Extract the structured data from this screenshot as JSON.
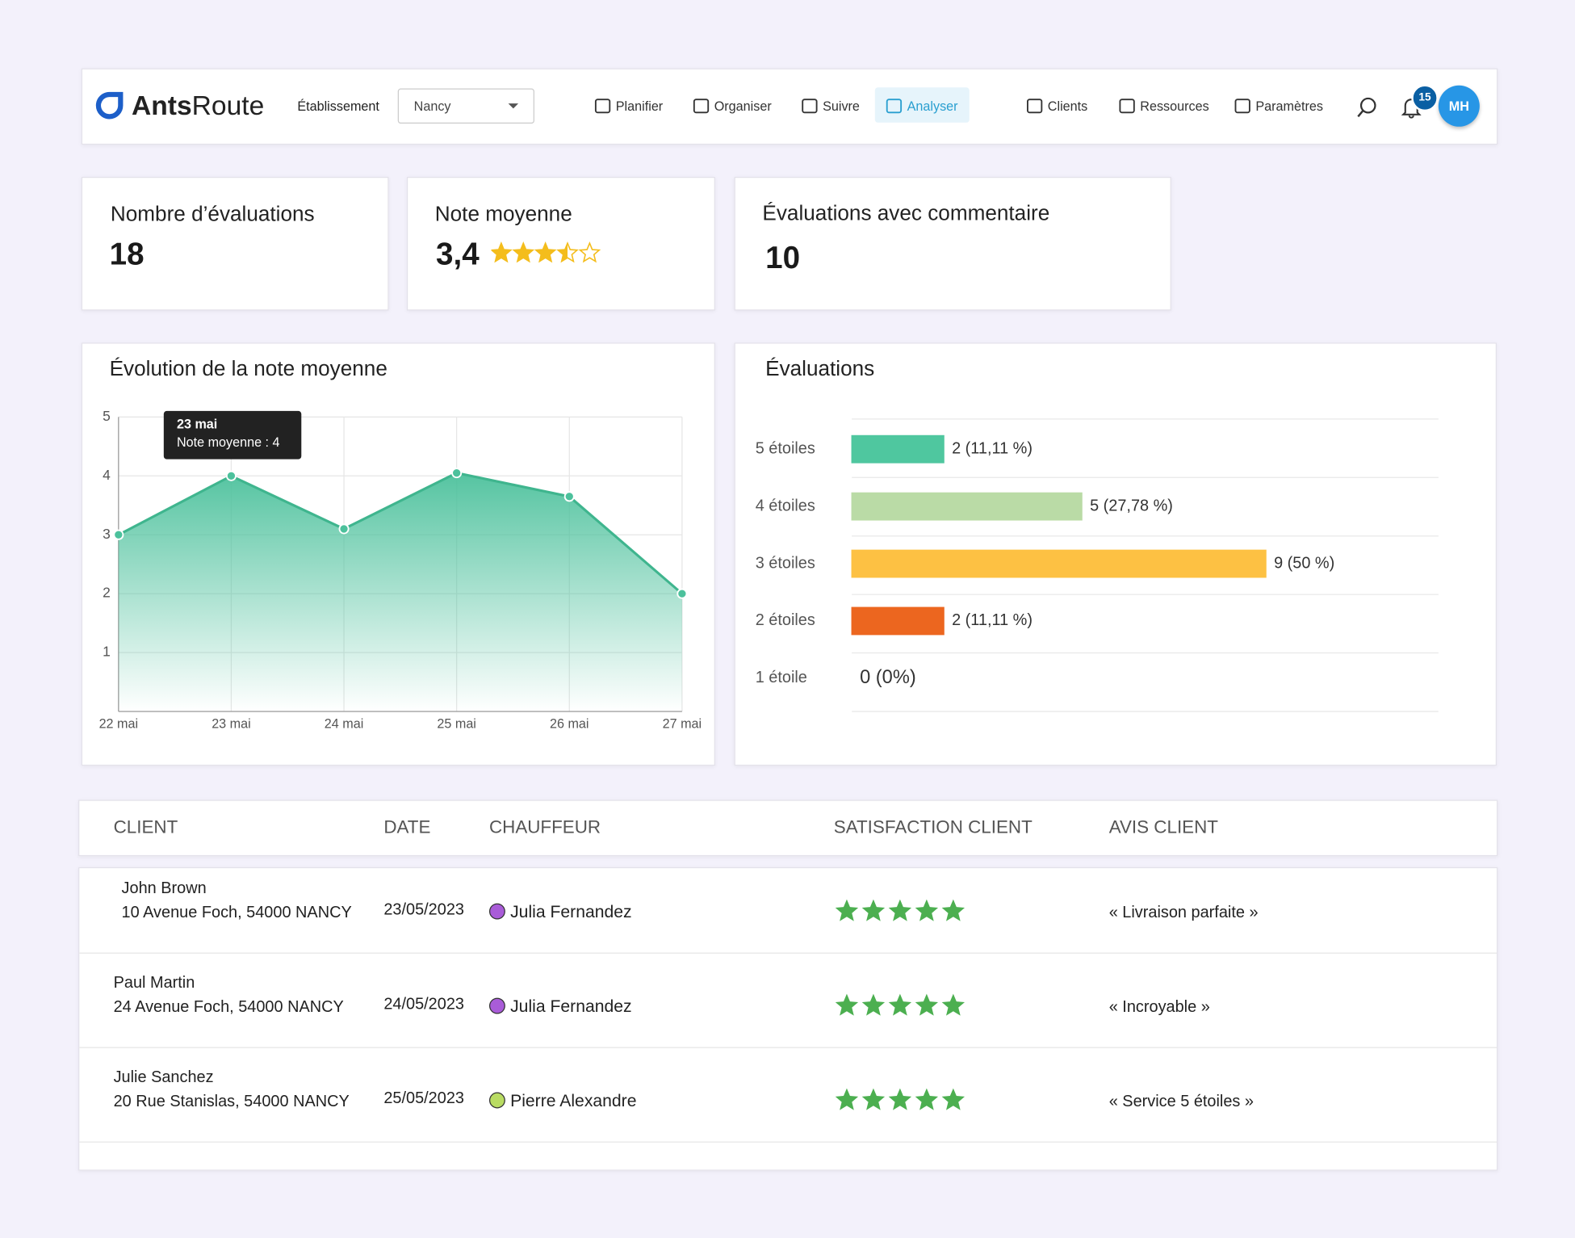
{
  "header": {
    "logo_bold": "Ants",
    "logo_rest": "Route",
    "establishment_label": "Établissement",
    "establishment_value": "Nancy",
    "nav": [
      "Planifier",
      "Organiser",
      "Suivre",
      "Analyser",
      "Clients",
      "Ressources",
      "Paramètres"
    ],
    "notifications": "15",
    "avatar": "MH"
  },
  "kpis": [
    {
      "title": "Nombre d’évaluations",
      "value": "18"
    },
    {
      "title": "Note moyenne",
      "value": "3,4"
    },
    {
      "title": "Évaluations avec commentaire",
      "value": "10"
    }
  ],
  "chart_data": [
    {
      "type": "area",
      "title": "Évolution de la note moyenne",
      "categories": [
        "22 mai",
        "23 mai",
        "24 mai",
        "25 mai",
        "26 mai",
        "27 mai"
      ],
      "values": [
        3,
        4,
        3.1,
        4.05,
        3.65,
        2
      ],
      "color": "#4cc19c",
      "ylim": [
        0,
        5
      ],
      "yticks": [
        1,
        2,
        3,
        4,
        5
      ],
      "grid": true,
      "tooltip": {
        "label": "Note moyenne : 4"
      }
    },
    {
      "type": "hbar",
      "title": "Évaluations",
      "categories": [
        "5 étoiles",
        "4 étoiles",
        "3 étoiles",
        "2 étoiles",
        "1 étoile"
      ],
      "values": [
        2,
        5,
        9,
        2,
        0
      ],
      "value_labels": [
        "2 (11,11 %)",
        "5 (27,78 %)",
        "9 (50 %)",
        "2 (11,11 %)",
        "0 (0%)"
      ],
      "colors": [
        "#4fc79f",
        "#badba6",
        "#fdc143",
        "#ec661f",
        "#e05a5a"
      ],
      "xlim": [
        0,
        12.75
      ]
    }
  ],
  "table": {
    "headers": [
      "CLIENT",
      "DATE",
      "CHAUFFEUR",
      "SATISFACTION CLIENT",
      "AVIS CLIENT"
    ],
    "rows": [
      {
        "name": "John Brown",
        "address": "10 Avenue Foch, 54000 NANCY",
        "date": "23/05/2023",
        "driver": "Julia Fernandez",
        "driver_color": "#a95cd8",
        "satisfaction": 5,
        "review": "« Livraison parfaite »"
      },
      {
        "name": "Paul Martin",
        "address": "24 Avenue Foch, 54000 NANCY",
        "date": "24/05/2023",
        "driver": "Julia Fernandez",
        "driver_color": "#a95cd8",
        "satisfaction": 5,
        "review": "« Incroyable »"
      },
      {
        "name": "Julie Sanchez",
        "address": "20 Rue Stanislas, 54000 NANCY",
        "date": "25/05/2023",
        "driver": "Pierre Alexandre",
        "driver_color": "#b9dc63",
        "satisfaction": 5,
        "review": "« Service 5 étoiles »"
      }
    ]
  }
}
